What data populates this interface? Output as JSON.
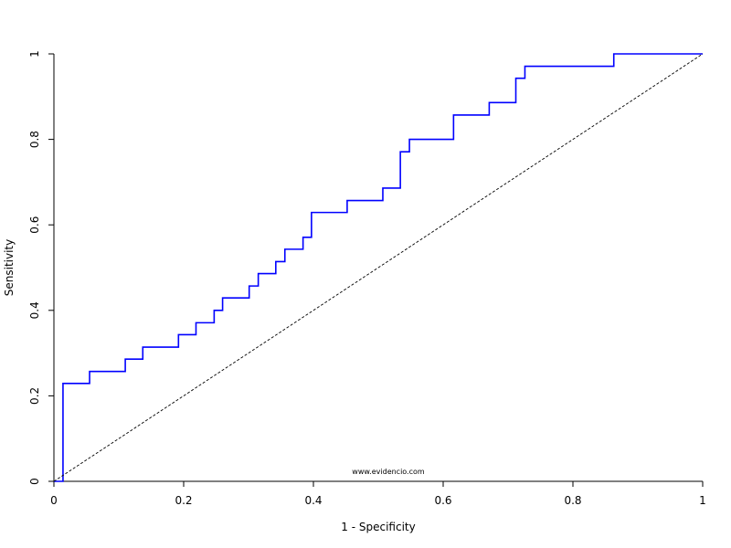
{
  "chart_data": {
    "type": "line",
    "title": "",
    "xlabel": "1 - Specificity",
    "ylabel": "Sensitivity",
    "xlim": [
      0,
      1
    ],
    "ylim": [
      0,
      1
    ],
    "x_ticks": [
      0,
      0.2,
      0.4,
      0.6,
      0.8,
      1
    ],
    "x_tick_labels": [
      "0",
      "0.2",
      "0.4",
      "0.6",
      "0.8",
      "1"
    ],
    "y_ticks": [
      0,
      0.2,
      0.4,
      0.6,
      0.8,
      1
    ],
    "y_tick_labels": [
      "0",
      "0.2",
      "0.4",
      "0.6",
      "0.8",
      "1"
    ],
    "grid": false,
    "legend": "none",
    "annotation": "www.evidencio.com",
    "series": [
      {
        "style": "step",
        "color": "#0000ff",
        "x": [
          0,
          0.014,
          0.014,
          0.055,
          0.055,
          0.11,
          0.11,
          0.137,
          0.137,
          0.192,
          0.192,
          0.219,
          0.219,
          0.247,
          0.247,
          0.26,
          0.26,
          0.301,
          0.301,
          0.315,
          0.315,
          0.342,
          0.342,
          0.356,
          0.356,
          0.384,
          0.384,
          0.397,
          0.397,
          0.452,
          0.452,
          0.507,
          0.507,
          0.534,
          0.534,
          0.548,
          0.548,
          0.616,
          0.616,
          0.671,
          0.671,
          0.712,
          0.712,
          0.726,
          0.726,
          0.863,
          0.863,
          1
        ],
        "y": [
          0,
          0,
          0.229,
          0.229,
          0.257,
          0.257,
          0.286,
          0.286,
          0.314,
          0.314,
          0.343,
          0.343,
          0.371,
          0.371,
          0.4,
          0.4,
          0.429,
          0.429,
          0.457,
          0.457,
          0.486,
          0.486,
          0.514,
          0.514,
          0.543,
          0.543,
          0.571,
          0.571,
          0.629,
          0.629,
          0.657,
          0.657,
          0.686,
          0.686,
          0.771,
          0.771,
          0.8,
          0.8,
          0.857,
          0.857,
          0.886,
          0.886,
          0.943,
          0.943,
          0.971,
          0.971,
          1,
          1
        ]
      },
      {
        "style": "dashed",
        "color": "#000000",
        "x": [
          0,
          1
        ],
        "y": [
          0,
          1
        ]
      }
    ]
  }
}
